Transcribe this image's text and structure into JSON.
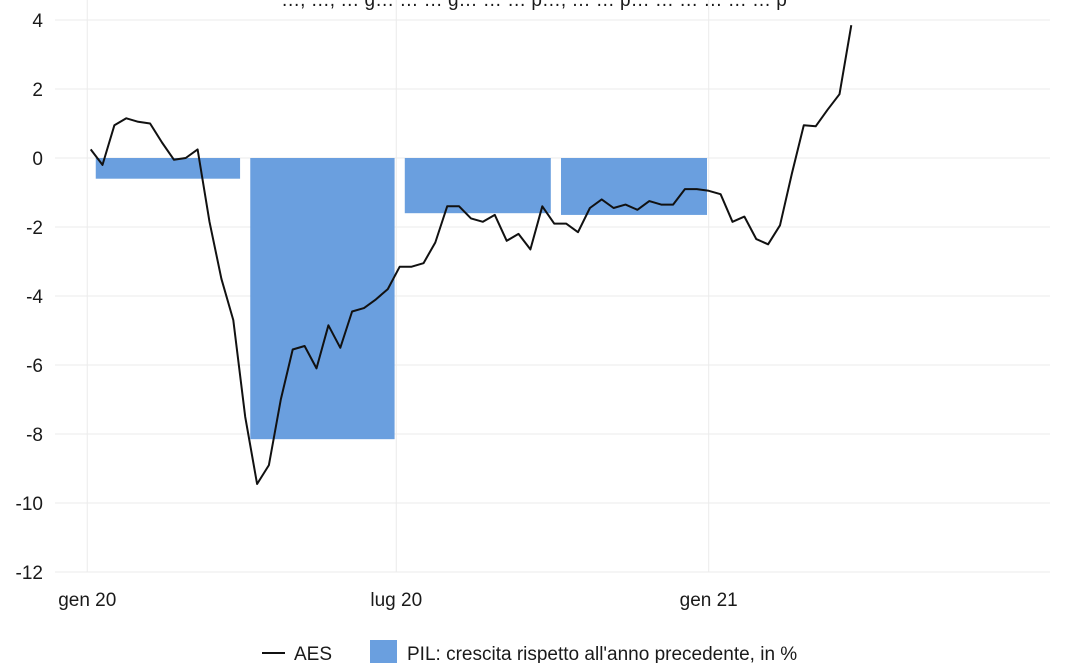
{
  "chart_data": {
    "type": "bar+line",
    "title": "…, …, … g… … … g… … … p…, … … p… … … … … … p",
    "xlabel": "",
    "ylabel": "",
    "ylim": [
      -12,
      4
    ],
    "y_ticks": [
      4,
      2,
      0,
      -2,
      -4,
      -6,
      -8,
      -10,
      -12
    ],
    "y_tick_labels": [
      "4",
      "2",
      "0",
      "-2",
      "-4",
      "-6",
      "-8",
      "-10",
      "-12"
    ],
    "x_ticks": [
      {
        "date": "2020-01-01",
        "label": "gen 20"
      },
      {
        "date": "2020-07-01",
        "label": "lug 20"
      },
      {
        "date": "2021-01-01",
        "label": "gen 21"
      }
    ],
    "xlim": [
      "2019-12-13",
      "2021-07-21"
    ],
    "grid": true,
    "legend_position": "bottom",
    "bar_series": {
      "name": "PIL: crescita rispetto all'anno precedente, in %",
      "color": "#6a9fdf",
      "bars": [
        {
          "quarter": "2020-Q1",
          "start": "2020-01-06",
          "end": "2020-03-31",
          "value": -0.6
        },
        {
          "quarter": "2020-Q2",
          "start": "2020-04-06",
          "end": "2020-06-30",
          "value": -8.15
        },
        {
          "quarter": "2020-Q3",
          "start": "2020-07-06",
          "end": "2020-09-30",
          "value": -1.6
        },
        {
          "quarter": "2020-Q4",
          "start": "2020-10-06",
          "end": "2020-12-31",
          "value": -1.65
        }
      ]
    },
    "line_series": {
      "name": "AES",
      "color": "#111111",
      "points": [
        [
          "2020-01-03",
          0.25
        ],
        [
          "2020-01-10",
          -0.2
        ],
        [
          "2020-01-17",
          0.95
        ],
        [
          "2020-01-24",
          1.15
        ],
        [
          "2020-01-31",
          1.05
        ],
        [
          "2020-02-07",
          1.0
        ],
        [
          "2020-02-14",
          0.45
        ],
        [
          "2020-02-21",
          -0.05
        ],
        [
          "2020-02-28",
          0.0
        ],
        [
          "2020-03-06",
          0.25
        ],
        [
          "2020-03-13",
          -1.85
        ],
        [
          "2020-03-20",
          -3.5
        ],
        [
          "2020-03-27",
          -4.7
        ],
        [
          "2020-04-03",
          -7.5
        ],
        [
          "2020-04-10",
          -9.45
        ],
        [
          "2020-04-17",
          -8.9
        ],
        [
          "2020-04-24",
          -7.0
        ],
        [
          "2020-05-01",
          -5.55
        ],
        [
          "2020-05-08",
          -5.45
        ],
        [
          "2020-05-15",
          -6.1
        ],
        [
          "2020-05-22",
          -4.85
        ],
        [
          "2020-05-29",
          -5.5
        ],
        [
          "2020-06-05",
          -4.45
        ],
        [
          "2020-06-12",
          -4.35
        ],
        [
          "2020-06-19",
          -4.1
        ],
        [
          "2020-06-26",
          -3.8
        ],
        [
          "2020-07-03",
          -3.15
        ],
        [
          "2020-07-10",
          -3.15
        ],
        [
          "2020-07-17",
          -3.05
        ],
        [
          "2020-07-24",
          -2.45
        ],
        [
          "2020-07-31",
          -1.4
        ],
        [
          "2020-08-07",
          -1.4
        ],
        [
          "2020-08-14",
          -1.75
        ],
        [
          "2020-08-21",
          -1.85
        ],
        [
          "2020-08-28",
          -1.65
        ],
        [
          "2020-09-04",
          -2.4
        ],
        [
          "2020-09-11",
          -2.2
        ],
        [
          "2020-09-18",
          -2.65
        ],
        [
          "2020-09-25",
          -1.4
        ],
        [
          "2020-10-02",
          -1.9
        ],
        [
          "2020-10-09",
          -1.9
        ],
        [
          "2020-10-16",
          -2.15
        ],
        [
          "2020-10-23",
          -1.45
        ],
        [
          "2020-10-30",
          -1.2
        ],
        [
          "2020-11-06",
          -1.45
        ],
        [
          "2020-11-13",
          -1.35
        ],
        [
          "2020-11-20",
          -1.5
        ],
        [
          "2020-11-27",
          -1.25
        ],
        [
          "2020-12-04",
          -1.35
        ],
        [
          "2020-12-11",
          -1.35
        ],
        [
          "2020-12-18",
          -0.9
        ],
        [
          "2020-12-25",
          -0.9
        ],
        [
          "2021-01-01",
          -0.95
        ],
        [
          "2021-01-08",
          -1.05
        ],
        [
          "2021-01-15",
          -1.85
        ],
        [
          "2021-01-22",
          -1.7
        ],
        [
          "2021-01-29",
          -2.35
        ],
        [
          "2021-02-05",
          -2.5
        ],
        [
          "2021-02-12",
          -1.95
        ],
        [
          "2021-02-19",
          -0.45
        ],
        [
          "2021-02-26",
          0.95
        ],
        [
          "2021-03-05",
          0.92
        ],
        [
          "2021-03-12",
          1.4
        ],
        [
          "2021-03-19",
          1.85
        ],
        [
          "2021-03-26",
          3.85
        ]
      ]
    }
  },
  "legend": {
    "items": [
      {
        "label": "AES",
        "kind": "line",
        "color": "#111111"
      },
      {
        "label": "PIL: crescita rispetto all'anno precedente, in %",
        "kind": "box",
        "color": "#6a9fdf"
      }
    ]
  }
}
